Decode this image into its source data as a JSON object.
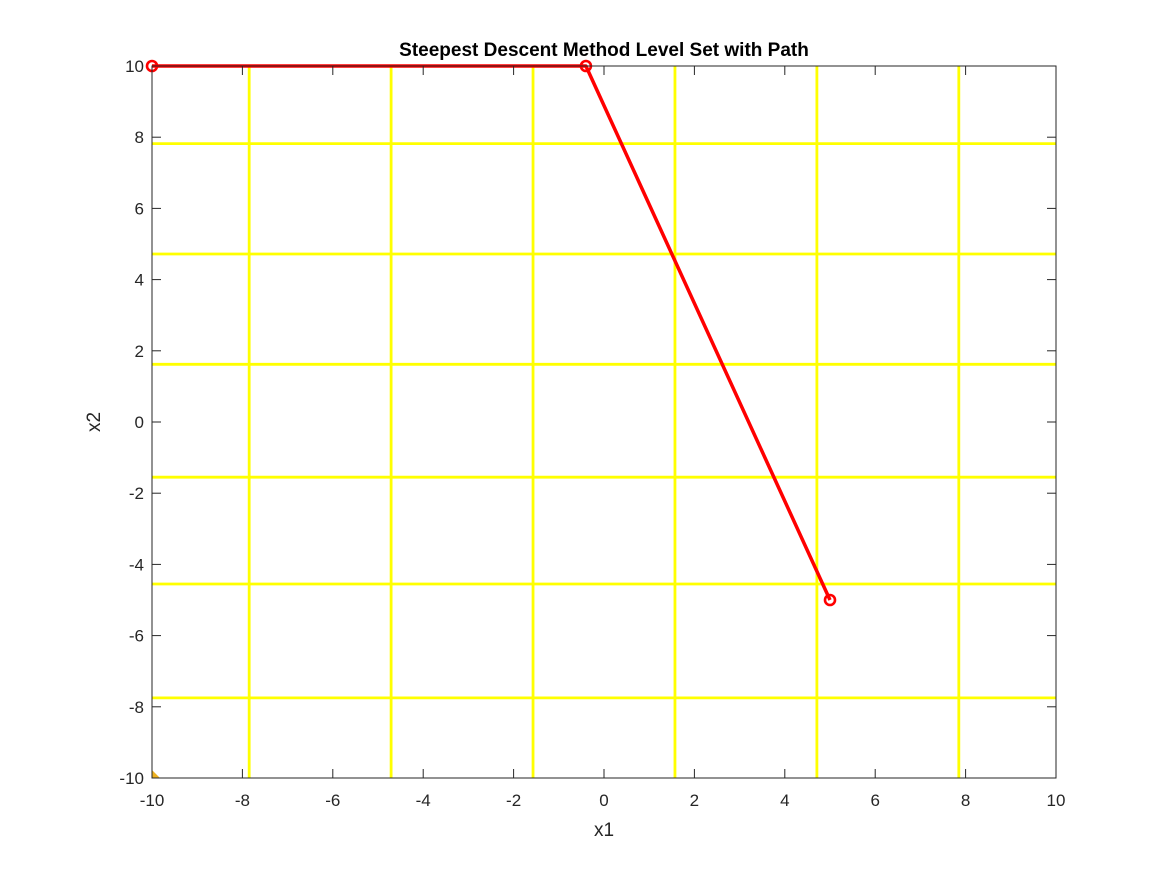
{
  "chart_data": {
    "type": "line",
    "title": "Steepest Descent Method Level Set with Path",
    "xlabel": "x1",
    "ylabel": "x2",
    "xlim": [
      -10,
      10
    ],
    "ylim": [
      -10,
      10
    ],
    "xticks": [
      -10,
      -8,
      -6,
      -4,
      -2,
      0,
      2,
      4,
      6,
      8,
      10
    ],
    "yticks": [
      -10,
      -8,
      -6,
      -4,
      -2,
      0,
      2,
      4,
      6,
      8,
      10
    ],
    "grid": false,
    "level_set": {
      "color": "#ffff00",
      "corner_accent_color": "#edb120",
      "vertical_lines_x": [
        -7.85,
        -4.71,
        -1.57,
        1.57,
        4.71,
        7.85
      ],
      "horizontal_lines_y": [
        -7.75,
        -4.55,
        -1.55,
        1.62,
        4.72,
        7.82
      ]
    },
    "series": [
      {
        "color": "#ff0000",
        "marker": "circle",
        "x": [
          -10,
          -0.4,
          5
        ],
        "y": [
          10,
          10,
          -5
        ]
      }
    ]
  }
}
